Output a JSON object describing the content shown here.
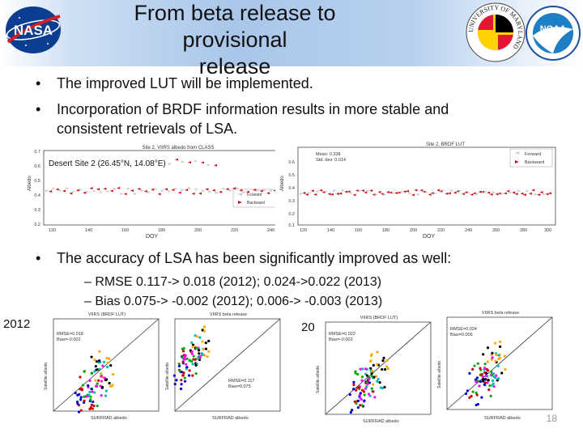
{
  "slide": {
    "title_line1": "From beta release to provisional",
    "title_line2": "release",
    "bullets": [
      "The improved LUT will be implemented.",
      "Incorporation of BRDF information results in more stable and",
      "consistent retrievals of LSA."
    ],
    "bullet3": "The accuracy of LSA has been significantly improved as well:",
    "sub_bullets": [
      "RMSE 0.117-> 0.018 (2012); 0.024->0.022 (2013)",
      "Bias 0.075-> -0.002 (2012); 0.006-> -0.003 (2013)"
    ],
    "year_2012": "2012",
    "year_2013": "2013",
    "site_caption": "Desert Site 2 (26.45°N, 14.08°E)",
    "page_number": "18"
  },
  "logos": {
    "nasa": "NASA",
    "umd_text": "UNIVERSITY OF MARYLAND",
    "noaa": "NOAA"
  },
  "plots": {
    "left_top": {
      "title": "Site 2, VIIRS albedo from CLASS",
      "xlabel": "DOY",
      "ylabel": "Albedo",
      "legend": [
        "Forward",
        "Backward"
      ],
      "yticks": [
        "0.7",
        "0.6",
        "0.5",
        "0.4",
        "0.3",
        "0.2"
      ],
      "xticks": [
        "120",
        "140",
        "160",
        "180",
        "200",
        "220",
        "240"
      ]
    },
    "right_top": {
      "title": "Site 2, BRDF LUT",
      "xlabel": "DOY",
      "ylabel": "Albedo",
      "legend": [
        "Forward",
        "Backward"
      ],
      "stats": [
        "Mean: 0.338",
        "Std. dev: 0.014"
      ],
      "yticks": [
        "0.6",
        "0.5",
        "0.4",
        "0.3",
        "0.2",
        "0.1"
      ],
      "xticks": [
        "120",
        "140",
        "160",
        "180",
        "200",
        "220",
        "240",
        "260",
        "280",
        "300"
      ]
    },
    "scatter_1": {
      "title": "VIIRS (BRDF LUT)",
      "stats": [
        "RMSE=0.018",
        "Bias=-0.002"
      ],
      "xlabel": "SURFRAD albedo",
      "ylabel": "Satellite albedo"
    },
    "scatter_2": {
      "title": "VIIRS beta release",
      "stats": [
        "RMSE=0.117",
        "Bias=0.075"
      ],
      "xlabel": "SURFRAD albedo",
      "ylabel": "Satellite albedo"
    },
    "scatter_3": {
      "title": "VIIRS (BRDF LUT)",
      "stats": [
        "RMSE=0.022",
        "Bias=-0.003"
      ],
      "xlabel": "SURFRAD albedo",
      "ylabel": "Satellite albedo"
    },
    "scatter_4": {
      "title": "VIIRS beta release",
      "stats": [
        "RMSE=0.024",
        "Bias=0.006"
      ],
      "xlabel": "SURFRAD albedo",
      "ylabel": "Satellite albedo"
    }
  },
  "colors": {
    "forward": "#c8c8d8",
    "backward": "#cc1111"
  }
}
